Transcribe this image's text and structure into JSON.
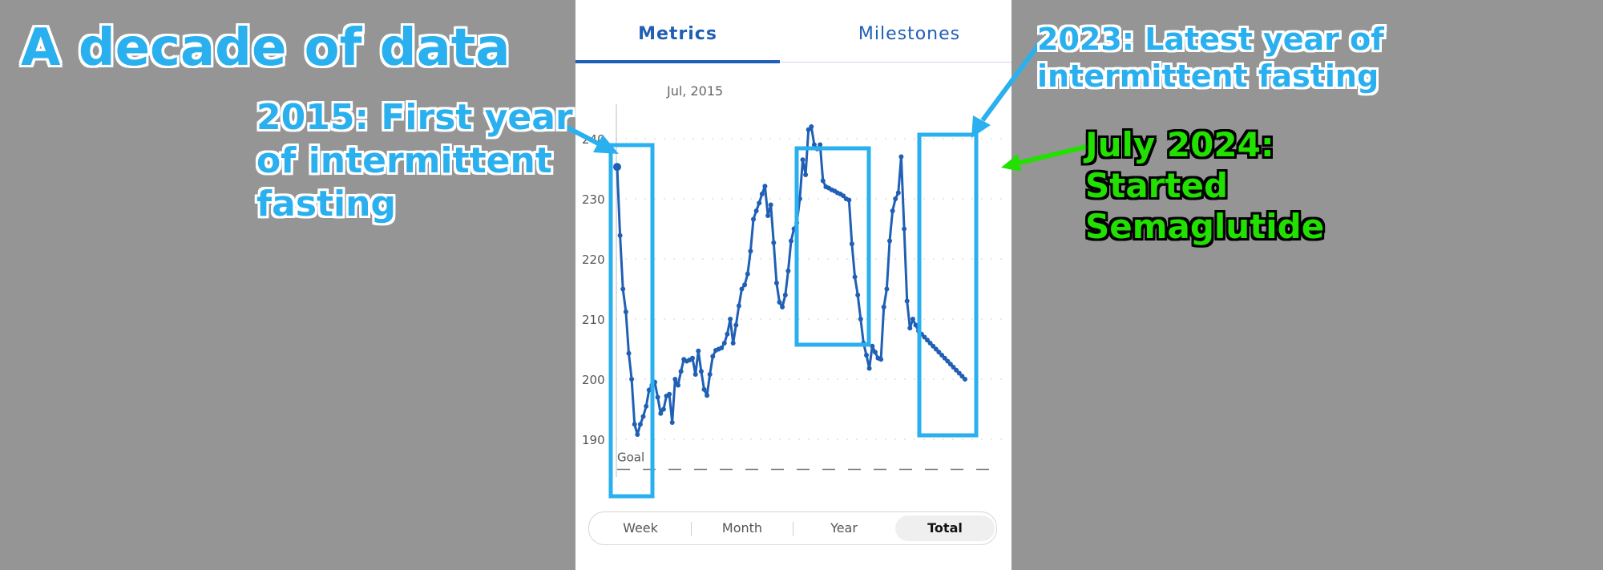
{
  "title": "A decade of data",
  "tabs": [
    {
      "label": "Metrics",
      "active": true
    },
    {
      "label": "Milestones",
      "active": false
    }
  ],
  "range_buttons": [
    {
      "label": "Week",
      "active": false
    },
    {
      "label": "Month",
      "active": false
    },
    {
      "label": "Year",
      "active": false
    },
    {
      "label": "Total",
      "active": true
    }
  ],
  "annotations": {
    "first_year": "2015: First year\nof intermittent\nfasting",
    "latest_year": "2023: Latest year of\nintermittent fasting",
    "semaglutide": "July 2024:\nStarted\nSemaglutide"
  },
  "colors": {
    "line": "#1f5fb5",
    "annotation_blue": "#2ab0ee",
    "annotation_green": "#22e000",
    "background": "#959595"
  },
  "chart_data": {
    "type": "line",
    "tooltip_label": "Jul, 2015",
    "goal_label": "Goal",
    "goal_value": 185,
    "y_ticks": [
      190,
      200,
      210,
      220,
      230,
      240
    ],
    "ylim": [
      182,
      246
    ],
    "grid": true,
    "series": [
      {
        "x": [
          0,
          2,
          4,
          6,
          8,
          10,
          12,
          14,
          16,
          18,
          20,
          22,
          24,
          26,
          28,
          30,
          32,
          34,
          36,
          38,
          40,
          42,
          44,
          46,
          48,
          50,
          52,
          54,
          56,
          58,
          60,
          62,
          64,
          66,
          68,
          70,
          72,
          74,
          76,
          78,
          80,
          82,
          84,
          86,
          88,
          90,
          92,
          94,
          96,
          98,
          100,
          102,
          104,
          106,
          108,
          110,
          112,
          114,
          116,
          118,
          120,
          122,
          124,
          126,
          128,
          130,
          132,
          134,
          136,
          138,
          140,
          142,
          144,
          146,
          148,
          150,
          152,
          154,
          156,
          158,
          160,
          162,
          164,
          166,
          168,
          170,
          172,
          174,
          176,
          178,
          180,
          182,
          184,
          186,
          188,
          190,
          192,
          194,
          196,
          198,
          200,
          202,
          204,
          206,
          208,
          210,
          212,
          214,
          216,
          218,
          220,
          222,
          224,
          226,
          228,
          230,
          232,
          234,
          236,
          238,
          240
        ],
        "values": [
          235.3,
          223.9,
          215.0,
          211.2,
          204.3,
          200.0,
          192.5,
          190.8,
          192.5,
          193.8,
          195.5,
          198.2,
          199.0,
          199.5,
          197.0,
          194.3,
          195.0,
          197.2,
          197.5,
          192.8,
          200.0,
          199.0,
          201.3,
          203.3,
          203.0,
          203.2,
          203.5,
          200.8,
          204.7,
          201.3,
          198.3,
          197.3,
          200.8,
          203.8,
          204.8,
          205.0,
          205.2,
          206.0,
          207.5,
          210.0,
          206.0,
          209.0,
          212.2,
          215.0,
          215.7,
          217.5,
          221.3,
          226.6,
          228.0,
          229.3,
          230.8,
          232.1,
          227.2,
          229.0,
          222.7,
          216.0,
          212.8,
          212.0,
          214.0,
          218.0,
          223.0,
          225.0,
          226.0,
          230.0,
          236.5,
          234.0,
          241.5,
          242.0,
          239.0,
          238.3,
          239.0,
          233.0,
          232.0,
          231.8,
          231.5,
          231.3,
          231.0,
          230.8,
          230.5,
          230.0,
          229.8,
          222.5,
          217.0,
          214.0,
          210.0,
          206.0,
          204.0,
          201.8,
          205.5,
          204.5,
          203.5,
          203.3,
          212.0,
          215.0,
          223.0,
          228.0,
          230.0,
          231.0,
          237.0,
          225.0,
          213.0,
          208.5,
          210.0,
          209.0,
          208.0,
          207.5,
          207.0,
          206.5,
          206.0,
          205.5,
          205.0,
          204.5,
          204.0,
          203.5,
          203.0,
          202.5,
          202.0,
          201.5,
          201.0,
          200.5,
          200.0
        ]
      }
    ]
  }
}
